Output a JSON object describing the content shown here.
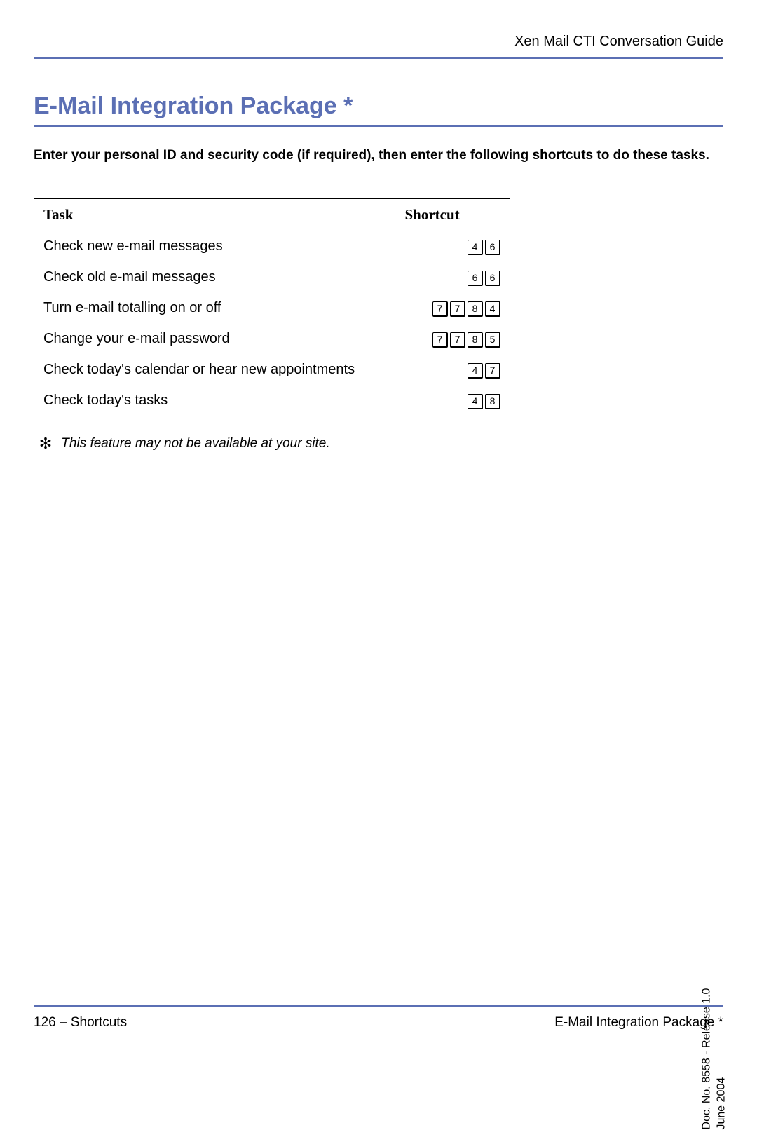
{
  "header": {
    "label": "Xen Mail CTI Conversation Guide"
  },
  "title": "E-Mail Integration Package *",
  "intro": "Enter your personal ID and security code (if required), then enter the following shortcuts to do these tasks.",
  "table": {
    "headers": {
      "task": "Task",
      "shortcut": "Shortcut"
    },
    "rows": [
      {
        "task": "Check new e-mail messages",
        "keys": [
          "4",
          "6"
        ]
      },
      {
        "task": "Check old e-mail messages",
        "keys": [
          "6",
          "6"
        ]
      },
      {
        "task": "Turn e-mail totalling on or off",
        "keys": [
          "7",
          "7",
          "8",
          "4"
        ]
      },
      {
        "task": "Change your e-mail password",
        "keys": [
          "7",
          "7",
          "8",
          "5"
        ]
      },
      {
        "task": "Check today's calendar or hear new appointments",
        "keys": [
          "4",
          "7"
        ]
      },
      {
        "task": "Check today's tasks",
        "keys": [
          "4",
          "8"
        ]
      }
    ]
  },
  "footnote": {
    "marker": "✻",
    "text": "This feature may not be available at your site."
  },
  "side_meta": {
    "line1": "Doc. No. 8558 - Release 1.0",
    "line2": "June 2004"
  },
  "footer": {
    "left": "126 – Shortcuts",
    "right": "E-Mail Integration Package *"
  },
  "colors": {
    "accent": "#5b6fb4",
    "text": "#000000",
    "background": "#ffffff"
  }
}
